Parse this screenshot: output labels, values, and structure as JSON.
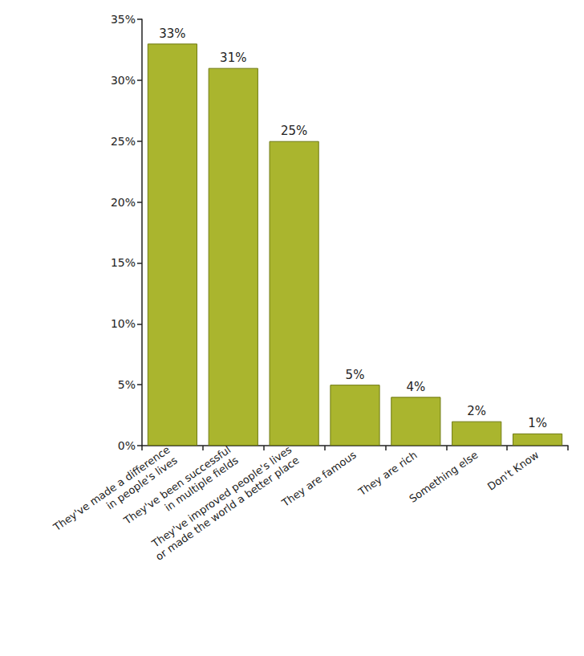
{
  "chart_data": {
    "type": "bar",
    "categories": [
      "They've made a difference in people's lives",
      "They've been successful in multiple fields",
      "They've improved people's lives or made the world a better place",
      "They are famous",
      "They are rich",
      "Something else",
      "Don't Know"
    ],
    "values": [
      33,
      31,
      25,
      5,
      4,
      2,
      1
    ],
    "value_labels": [
      "33%",
      "31%",
      "25%",
      "5%",
      "4%",
      "2%",
      "1%"
    ],
    "data_labels": true,
    "color": "#aab52e",
    "ylim": [
      0,
      35
    ],
    "yticks": [
      {
        "value": 0,
        "label": "0%"
      },
      {
        "value": 5,
        "label": "5%"
      },
      {
        "value": 10,
        "label": "10%"
      },
      {
        "value": 15,
        "label": "15%"
      },
      {
        "value": 20,
        "label": "20%"
      },
      {
        "value": 25,
        "label": "25%"
      },
      {
        "value": 30,
        "label": "30%"
      },
      {
        "value": 35,
        "label": "35%"
      }
    ],
    "grid": false
  }
}
